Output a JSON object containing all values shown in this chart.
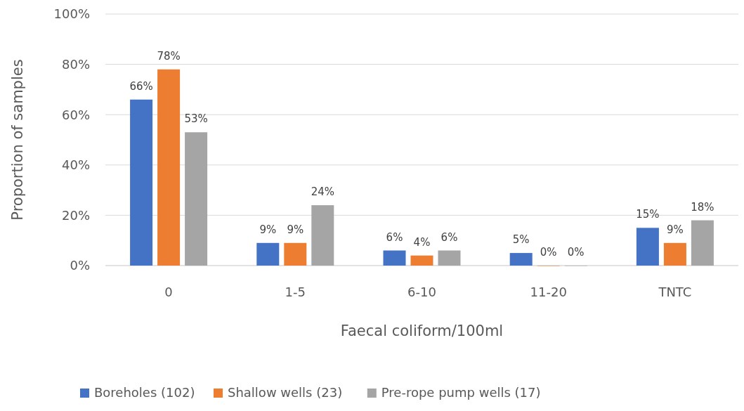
{
  "chart_data": {
    "type": "bar",
    "xlabel": "Faecal coliform/100ml",
    "ylabel": "Proportion of samples",
    "categories": [
      "0",
      "1-5",
      "6-10",
      "11-20",
      "TNTC"
    ],
    "series": [
      {
        "name": "Boreholes (102)",
        "color": "#4472c4",
        "values": [
          66,
          9,
          6,
          5,
          15
        ],
        "value_labels": [
          "66%",
          "9%",
          "6%",
          "5%",
          "15%"
        ]
      },
      {
        "name": "Shallow wells (23)",
        "color": "#ed7d31",
        "values": [
          78,
          9,
          4,
          0,
          9
        ],
        "value_labels": [
          "78%",
          "9%",
          "4%",
          "0%",
          "9%"
        ]
      },
      {
        "name": "Pre-rope pump wells (17)",
        "color": "#a5a5a5",
        "values": [
          53,
          24,
          6,
          0,
          18
        ],
        "value_labels": [
          "53%",
          "24%",
          "6%",
          "0%",
          "18%"
        ]
      }
    ],
    "ylim": [
      0,
      100
    ],
    "yticks": [
      {
        "value": 0,
        "label": "0%"
      },
      {
        "value": 20,
        "label": "20%"
      },
      {
        "value": 40,
        "label": "40%"
      },
      {
        "value": 60,
        "label": "60%"
      },
      {
        "value": 80,
        "label": "80%"
      },
      {
        "value": 100,
        "label": "100%"
      }
    ],
    "grid": "y",
    "legend": "bottom"
  }
}
